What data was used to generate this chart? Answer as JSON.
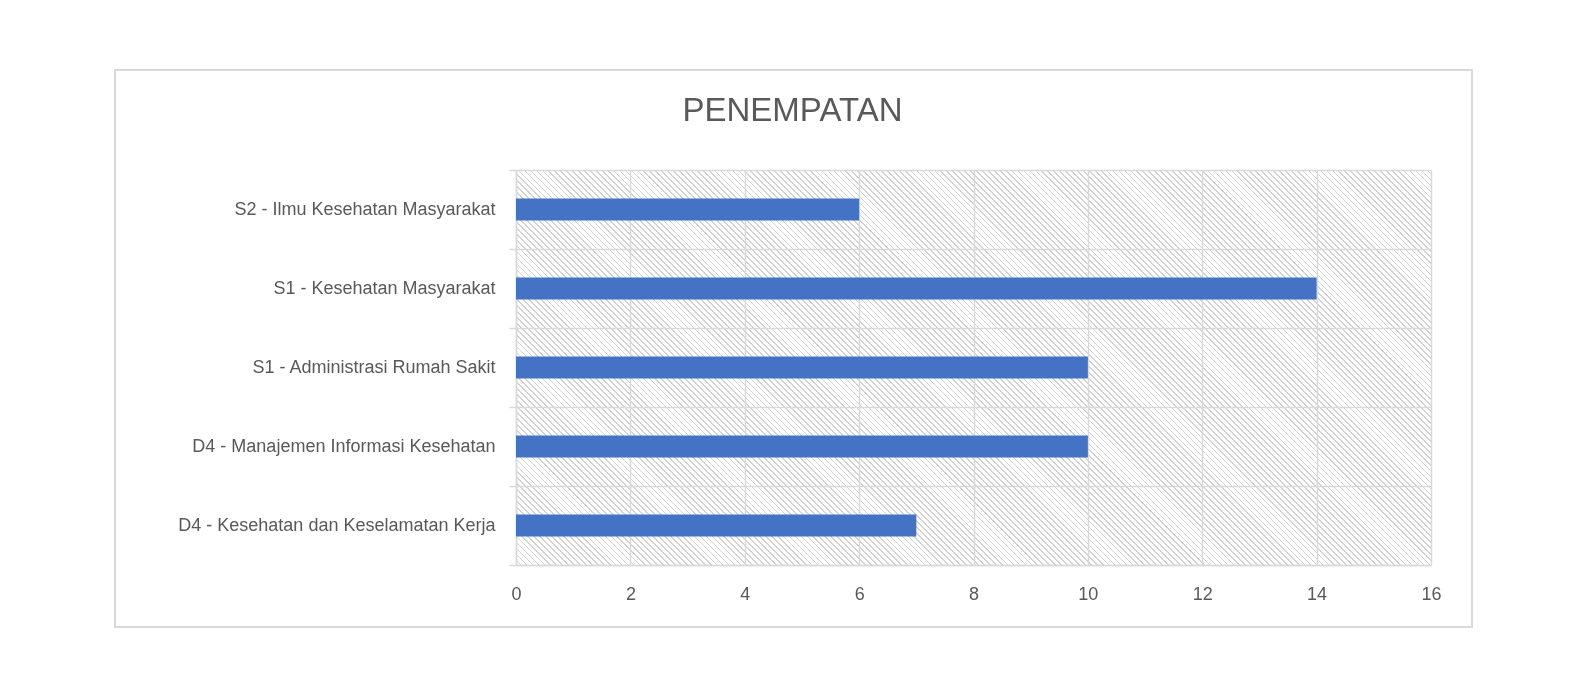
{
  "chart_data": {
    "type": "bar",
    "orientation": "horizontal",
    "title": "PENEMPATAN",
    "categories": [
      "S2 - Ilmu Kesehatan Masyarakat",
      "S1 - Kesehatan Masyarakat",
      "S1 - Administrasi Rumah Sakit",
      "D4 - Manajemen Informasi Kesehatan",
      "D4 - Kesehatan dan Keselamatan Kerja"
    ],
    "values": [
      6,
      14,
      10,
      10,
      7
    ],
    "color": "#4472c4",
    "xlim": [
      0,
      16
    ],
    "xticks": [
      0,
      2,
      4,
      6,
      8,
      10,
      12,
      14,
      16
    ],
    "grid": true
  }
}
